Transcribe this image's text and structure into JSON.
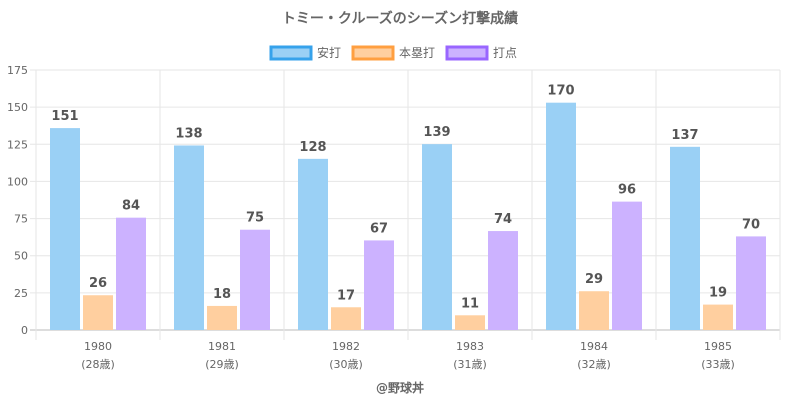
{
  "chart_data": {
    "type": "bar",
    "title": "トミー・クルーズのシーズン打撃成績",
    "categories": [
      "1980",
      "1981",
      "1982",
      "1983",
      "1984",
      "1985"
    ],
    "category_sublabels": [
      "(28歳)",
      "(29歳)",
      "(30歳)",
      "(31歳)",
      "(32歳)",
      "(33歳)"
    ],
    "series": [
      {
        "name": "安打",
        "values": [
          151,
          138,
          128,
          139,
          170,
          137
        ],
        "color": "#9ad0f5",
        "border": "#36a2eb"
      },
      {
        "name": "本塁打",
        "values": [
          26,
          18,
          17,
          11,
          29,
          19
        ],
        "color": "#ffcf9f",
        "border": "#ff9f40"
      },
      {
        "name": "打点",
        "values": [
          84,
          75,
          67,
          74,
          96,
          70
        ],
        "color": "#ccb2ff",
        "border": "#9966ff"
      }
    ],
    "xlabel": "",
    "ylabel": "",
    "ylim": [
      0,
      175
    ],
    "yticks": [
      0,
      25,
      50,
      75,
      100,
      125,
      150,
      175
    ],
    "grid": true,
    "legend": "top-center",
    "credit": "@野球丼"
  }
}
